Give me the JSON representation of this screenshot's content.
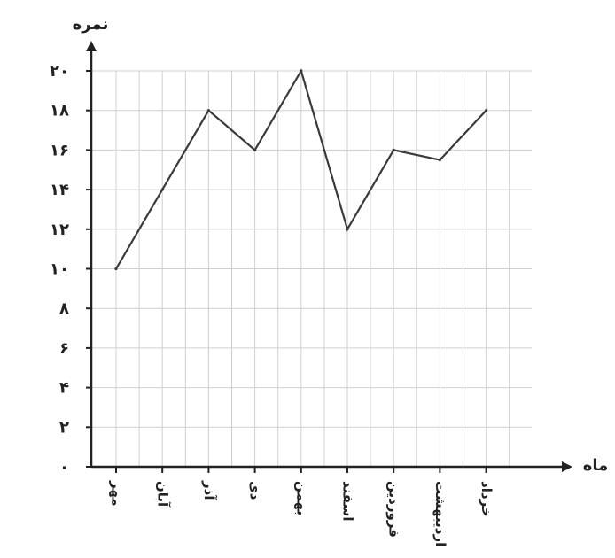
{
  "chart_data": {
    "type": "line",
    "xlabel": "ماه",
    "ylabel": "نمره",
    "categories": [
      "مهر",
      "آبان",
      "آذر",
      "دی",
      "بهمن",
      "اسفند",
      "فروردین",
      "اردیبهشت",
      "خرداد"
    ],
    "series": [
      {
        "values": [
          10,
          14,
          18,
          16,
          20,
          12,
          16,
          15.5,
          18
        ]
      }
    ],
    "ylim": [
      0,
      20
    ],
    "yticks": [
      0,
      2,
      4,
      6,
      8,
      10,
      12,
      14,
      16,
      18,
      20
    ],
    "ytick_labels": [
      "۰",
      "۲",
      "۴",
      "۶",
      "۸",
      "۱۰",
      "۱۲",
      "۱۴",
      "۱۶",
      "۱۸",
      "۲۰"
    ],
    "grid": true,
    "colors": {
      "line": "#3a3a3a",
      "grid": "#cfcfcf",
      "axis": "#222222"
    }
  }
}
